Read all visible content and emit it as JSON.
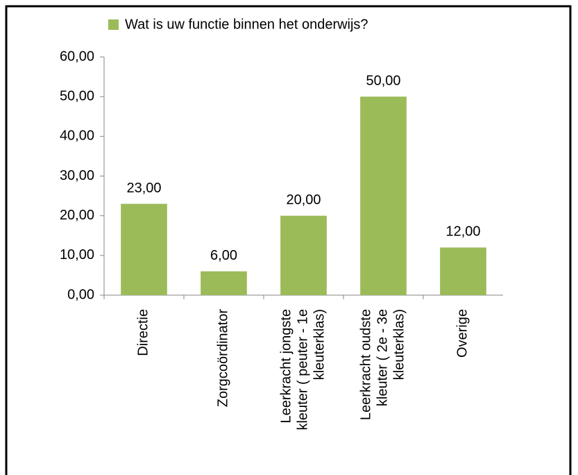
{
  "chart_data": {
    "type": "bar",
    "categories": [
      "Directie",
      "Zorgcoördinator",
      "Leerkracht jongste kleuter ( peuter - 1e kleuterklas)",
      "Leerkracht oudste kleuter ( 2e - 3e kleuterklas)",
      "Overige"
    ],
    "series": [
      {
        "name": "Wat is uw functie binnen het onderwijs?",
        "color": "#9bbb59",
        "values": [
          23,
          6,
          20,
          50,
          12
        ],
        "value_labels": [
          "23,00",
          "6,00",
          "20,00",
          "50,00",
          "12,00"
        ]
      }
    ],
    "ylim": [
      0,
      60
    ],
    "yticks": [
      {
        "value": 0,
        "label": "0,00"
      },
      {
        "value": 10,
        "label": "10,00"
      },
      {
        "value": 20,
        "label": "20,00"
      },
      {
        "value": 30,
        "label": "30,00"
      },
      {
        "value": 40,
        "label": "40,00"
      },
      {
        "value": 50,
        "label": "50,00"
      },
      {
        "value": 60,
        "label": "60,00"
      }
    ]
  }
}
